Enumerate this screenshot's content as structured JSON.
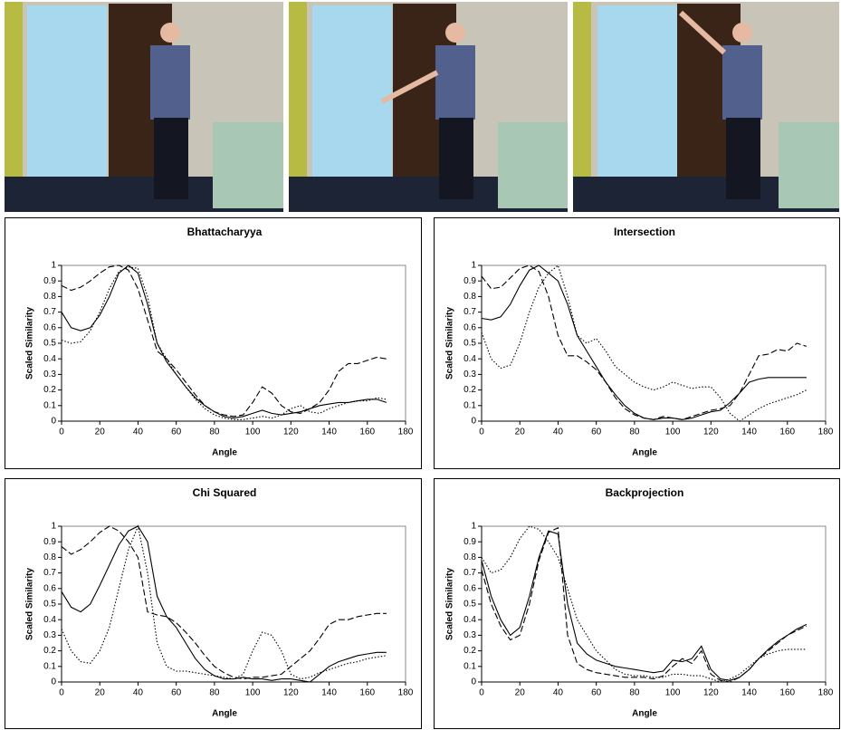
{
  "chart_data": [
    {
      "type": "line",
      "title": "Bhattacharyya",
      "x_label": "Angle",
      "y_label": "Scaled Similarity",
      "xlim": [
        0,
        180
      ],
      "xticks": [
        0,
        20,
        40,
        60,
        80,
        100,
        120,
        140,
        160,
        180
      ],
      "ylim": [
        0,
        1
      ],
      "yticks": [
        0,
        0.1,
        0.2,
        0.3,
        0.4,
        0.5,
        0.6,
        0.7,
        0.8,
        0.9,
        1
      ],
      "grid": false,
      "x": [
        0,
        5,
        10,
        15,
        20,
        25,
        30,
        35,
        40,
        45,
        50,
        55,
        60,
        65,
        70,
        75,
        80,
        85,
        90,
        95,
        100,
        105,
        110,
        115,
        120,
        125,
        130,
        135,
        140,
        145,
        150,
        155,
        160,
        165,
        170
      ],
      "series": [
        {
          "color": "#000000",
          "dash": "solid",
          "values": [
            0.7,
            0.6,
            0.58,
            0.6,
            0.68,
            0.8,
            0.95,
            1.0,
            0.95,
            0.75,
            0.5,
            0.38,
            0.3,
            0.22,
            0.15,
            0.1,
            0.06,
            0.03,
            0.02,
            0.03,
            0.05,
            0.07,
            0.05,
            0.04,
            0.05,
            0.06,
            0.08,
            0.1,
            0.11,
            0.12,
            0.12,
            0.13,
            0.14,
            0.14,
            0.12
          ]
        },
        {
          "color": "#000000",
          "dash": "dashed",
          "values": [
            0.87,
            0.84,
            0.86,
            0.9,
            0.95,
            0.99,
            1.0,
            0.97,
            0.85,
            0.65,
            0.45,
            0.4,
            0.33,
            0.25,
            0.17,
            0.1,
            0.06,
            0.04,
            0.03,
            0.04,
            0.12,
            0.22,
            0.18,
            0.1,
            0.06,
            0.05,
            0.08,
            0.12,
            0.2,
            0.32,
            0.37,
            0.37,
            0.39,
            0.41,
            0.4
          ]
        },
        {
          "color": "#000000",
          "dash": "dotted",
          "values": [
            0.52,
            0.5,
            0.51,
            0.58,
            0.7,
            0.85,
            0.96,
            0.99,
            0.98,
            0.8,
            0.5,
            0.4,
            0.3,
            0.22,
            0.14,
            0.08,
            0.04,
            0.02,
            0.01,
            0.01,
            0.02,
            0.03,
            0.02,
            0.04,
            0.08,
            0.1,
            0.06,
            0.05,
            0.08,
            0.1,
            0.12,
            0.13,
            0.13,
            0.15,
            0.14
          ]
        }
      ]
    },
    {
      "type": "line",
      "title": "Intersection",
      "x_label": "Angle",
      "y_label": "Scaled Similarity",
      "xlim": [
        0,
        180
      ],
      "xticks": [
        0,
        20,
        40,
        60,
        80,
        100,
        120,
        140,
        160,
        180
      ],
      "ylim": [
        0,
        1
      ],
      "yticks": [
        0,
        0.1,
        0.2,
        0.3,
        0.4,
        0.5,
        0.6,
        0.7,
        0.8,
        0.9,
        1
      ],
      "grid": false,
      "x": [
        0,
        5,
        10,
        15,
        20,
        25,
        30,
        35,
        40,
        45,
        50,
        55,
        60,
        65,
        70,
        75,
        80,
        85,
        90,
        95,
        100,
        105,
        110,
        115,
        120,
        125,
        130,
        135,
        140,
        145,
        150,
        155,
        160,
        165,
        170
      ],
      "series": [
        {
          "color": "#000000",
          "dash": "solid",
          "values": [
            0.66,
            0.65,
            0.67,
            0.75,
            0.87,
            0.97,
            1.0,
            0.95,
            0.9,
            0.75,
            0.55,
            0.45,
            0.35,
            0.25,
            0.17,
            0.1,
            0.05,
            0.02,
            0.01,
            0.02,
            0.02,
            0.01,
            0.02,
            0.04,
            0.06,
            0.07,
            0.12,
            0.18,
            0.25,
            0.27,
            0.28,
            0.28,
            0.28,
            0.28,
            0.28
          ]
        },
        {
          "color": "#000000",
          "dash": "dashed",
          "values": [
            0.93,
            0.85,
            0.86,
            0.92,
            0.98,
            1.0,
            0.96,
            0.8,
            0.55,
            0.42,
            0.42,
            0.38,
            0.33,
            0.25,
            0.15,
            0.08,
            0.04,
            0.02,
            0.01,
            0.03,
            0.02,
            0.01,
            0.03,
            0.05,
            0.07,
            0.08,
            0.1,
            0.18,
            0.3,
            0.42,
            0.43,
            0.46,
            0.45,
            0.5,
            0.48
          ]
        },
        {
          "color": "#000000",
          "dash": "dotted",
          "values": [
            0.57,
            0.4,
            0.34,
            0.36,
            0.5,
            0.7,
            0.86,
            0.95,
            1.0,
            0.8,
            0.55,
            0.5,
            0.53,
            0.45,
            0.35,
            0.3,
            0.25,
            0.22,
            0.2,
            0.22,
            0.25,
            0.23,
            0.21,
            0.22,
            0.22,
            0.15,
            0.05,
            0.0,
            0.04,
            0.08,
            0.11,
            0.13,
            0.15,
            0.17,
            0.2
          ]
        }
      ]
    },
    {
      "type": "line",
      "title": "Chi Squared",
      "x_label": "Angle",
      "y_label": "Scaled Similarity",
      "xlim": [
        0,
        180
      ],
      "xticks": [
        0,
        20,
        40,
        60,
        80,
        100,
        120,
        140,
        160,
        180
      ],
      "ylim": [
        0,
        1
      ],
      "yticks": [
        0,
        0.1,
        0.2,
        0.3,
        0.4,
        0.5,
        0.6,
        0.7,
        0.8,
        0.9,
        1
      ],
      "grid": false,
      "x": [
        0,
        5,
        10,
        15,
        20,
        25,
        30,
        35,
        40,
        45,
        50,
        55,
        60,
        65,
        70,
        75,
        80,
        85,
        90,
        95,
        100,
        105,
        110,
        115,
        120,
        125,
        130,
        135,
        140,
        145,
        150,
        155,
        160,
        165,
        170
      ],
      "series": [
        {
          "color": "#000000",
          "dash": "solid",
          "values": [
            0.58,
            0.48,
            0.45,
            0.5,
            0.62,
            0.75,
            0.88,
            0.97,
            1.0,
            0.9,
            0.55,
            0.42,
            0.35,
            0.25,
            0.15,
            0.08,
            0.04,
            0.02,
            0.02,
            0.03,
            0.02,
            0.02,
            0.01,
            0.02,
            0.02,
            0.01,
            0.0,
            0.05,
            0.1,
            0.13,
            0.15,
            0.17,
            0.18,
            0.19,
            0.19
          ]
        },
        {
          "color": "#000000",
          "dash": "dashed",
          "values": [
            0.87,
            0.82,
            0.85,
            0.9,
            0.96,
            1.0,
            0.97,
            0.9,
            0.8,
            0.45,
            0.43,
            0.42,
            0.38,
            0.32,
            0.25,
            0.17,
            0.1,
            0.06,
            0.03,
            0.02,
            0.03,
            0.03,
            0.04,
            0.05,
            0.1,
            0.15,
            0.2,
            0.28,
            0.37,
            0.4,
            0.4,
            0.42,
            0.43,
            0.44,
            0.44
          ]
        },
        {
          "color": "#000000",
          "dash": "dotted",
          "values": [
            0.34,
            0.2,
            0.13,
            0.12,
            0.2,
            0.35,
            0.6,
            0.85,
            1.0,
            0.7,
            0.25,
            0.1,
            0.07,
            0.07,
            0.06,
            0.05,
            0.04,
            0.03,
            0.02,
            0.05,
            0.2,
            0.32,
            0.3,
            0.2,
            0.05,
            0.02,
            0.03,
            0.06,
            0.08,
            0.1,
            0.12,
            0.13,
            0.15,
            0.16,
            0.17
          ]
        }
      ]
    },
    {
      "type": "line",
      "title": "Backprojection",
      "x_label": "Angle",
      "y_label": "Scaled Similarity",
      "xlim": [
        0,
        180
      ],
      "xticks": [
        0,
        20,
        40,
        60,
        80,
        100,
        120,
        140,
        160,
        180
      ],
      "ylim": [
        0,
        1
      ],
      "yticks": [
        0,
        0.1,
        0.2,
        0.3,
        0.4,
        0.5,
        0.6,
        0.7,
        0.8,
        0.9,
        1
      ],
      "grid": false,
      "x": [
        0,
        5,
        10,
        15,
        20,
        25,
        30,
        35,
        40,
        45,
        50,
        55,
        60,
        65,
        70,
        75,
        80,
        85,
        90,
        95,
        100,
        105,
        110,
        115,
        120,
        125,
        130,
        135,
        140,
        145,
        150,
        155,
        160,
        165,
        170
      ],
      "series": [
        {
          "color": "#000000",
          "dash": "solid",
          "values": [
            0.78,
            0.55,
            0.4,
            0.3,
            0.35,
            0.55,
            0.8,
            0.97,
            0.95,
            0.5,
            0.25,
            0.18,
            0.14,
            0.12,
            0.1,
            0.09,
            0.08,
            0.07,
            0.06,
            0.07,
            0.14,
            0.13,
            0.15,
            0.23,
            0.08,
            0.02,
            0.01,
            0.03,
            0.08,
            0.15,
            0.21,
            0.26,
            0.3,
            0.34,
            0.37
          ]
        },
        {
          "color": "#000000",
          "dash": "dashed",
          "values": [
            0.72,
            0.5,
            0.36,
            0.27,
            0.3,
            0.5,
            0.78,
            0.96,
            0.99,
            0.3,
            0.12,
            0.08,
            0.06,
            0.05,
            0.04,
            0.03,
            0.03,
            0.03,
            0.02,
            0.04,
            0.1,
            0.15,
            0.12,
            0.2,
            0.05,
            0.01,
            0.0,
            0.03,
            0.08,
            0.15,
            0.2,
            0.25,
            0.3,
            0.33,
            0.36
          ]
        },
        {
          "color": "#000000",
          "dash": "dotted",
          "values": [
            0.8,
            0.7,
            0.72,
            0.8,
            0.92,
            1.0,
            0.98,
            0.9,
            0.8,
            0.6,
            0.4,
            0.3,
            0.2,
            0.14,
            0.08,
            0.05,
            0.04,
            0.04,
            0.03,
            0.03,
            0.05,
            0.05,
            0.04,
            0.04,
            0.02,
            0.0,
            0.02,
            0.05,
            0.1,
            0.15,
            0.18,
            0.2,
            0.21,
            0.21,
            0.21
          ]
        }
      ]
    }
  ]
}
